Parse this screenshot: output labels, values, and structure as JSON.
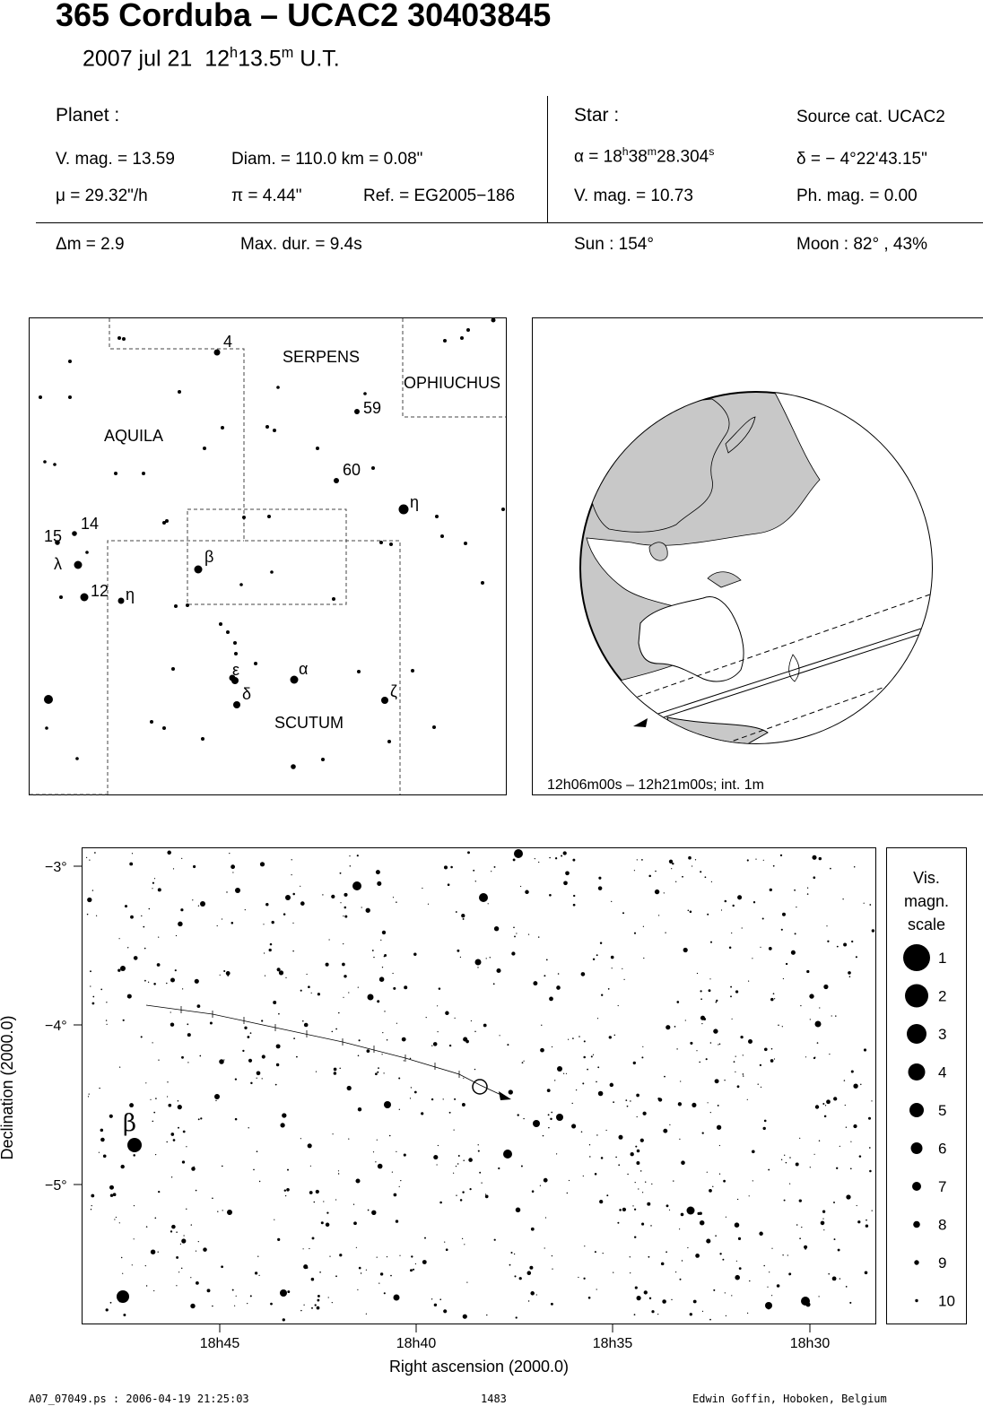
{
  "header": {
    "title": "365 Corduba  –  UCAC2 30403845",
    "date": "2007 jul 21",
    "time_h": "12",
    "time_m": "13.5",
    "time_ut": "U.T."
  },
  "planet": {
    "heading": "Planet :",
    "vmag": "V. mag. = 13.59",
    "diam": "Diam. = 110.0 km = 0.08\"",
    "mu": "μ =  29.32\"/h",
    "pi": "π =  4.44\"",
    "ref": "Ref. = EG2005−186"
  },
  "star": {
    "heading": "Star :",
    "source_cat": "Source cat.  UCAC2",
    "alpha_prefix": "α = 18",
    "alpha_h": "h",
    "alpha_min": "38",
    "alpha_m": "m",
    "alpha_sec": "28.304",
    "alpha_s": "s",
    "delta": "δ = − 4°22'43.15\"",
    "vmag": "V. mag. = 10.73",
    "phmag": "Ph. mag. =  0.00"
  },
  "event": {
    "dm": "Δm = 2.9",
    "maxdur": "Max. dur. = 9.4s",
    "sun": "Sun : 154°",
    "moon": "Moon :  82° , 43%"
  },
  "constellation_map": {
    "labels": [
      "AQUILA",
      "SERPENS",
      "OPHIUCHUS",
      "SCUTUM"
    ],
    "star_labels": [
      "4",
      "59",
      "60",
      "η",
      "15",
      "14",
      "λ",
      "β",
      "12",
      "η",
      "ε",
      "α",
      "δ",
      "ζ"
    ]
  },
  "globe": {
    "caption": "12h06m00s – 12h21m00s; int.  1m",
    "land_color": "#c8c8c8",
    "sea_color": "#ffffff"
  },
  "chart_data": {
    "type": "scatter",
    "xlabel": "Right ascension (2000.0)",
    "ylabel": "Declination (2000.0)",
    "x_ticks": [
      "18h45",
      "18h40",
      "18h35",
      "18h30"
    ],
    "y_ticks": [
      "−3°",
      "−4°",
      "−5°"
    ],
    "star_label": "β",
    "scale_title": [
      "Vis.",
      "magn.",
      "scale"
    ],
    "scale_magnitudes": [
      "1",
      "2",
      "3",
      "4",
      "5",
      "6",
      "7",
      "8",
      "9",
      "10"
    ]
  },
  "footer": {
    "file": "A07_07049.ps : 2006-04-19 21:25:03",
    "page": "1483",
    "author": "Edwin Goffin, Hoboken, Belgium"
  }
}
